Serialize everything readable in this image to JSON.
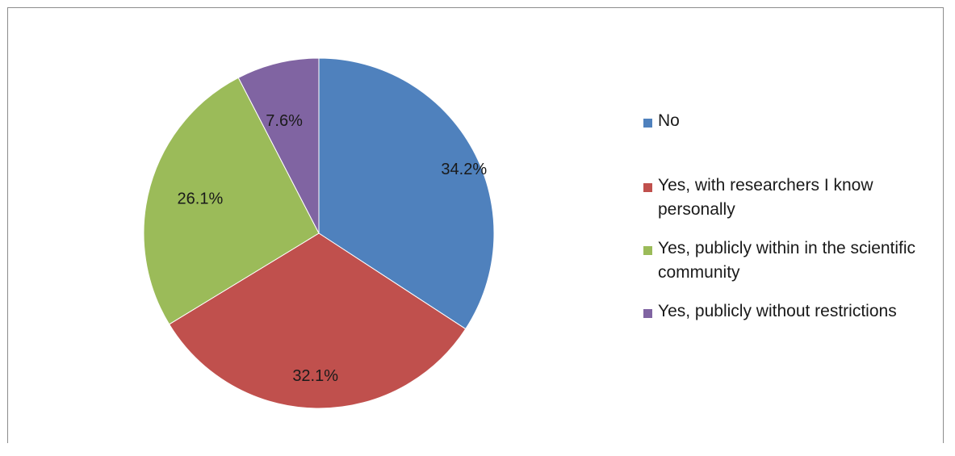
{
  "chart_data": {
    "type": "pie",
    "title": "",
    "slices": [
      {
        "label": "No",
        "value": 34.2,
        "value_label": "34.2%",
        "color": "#4f81bd"
      },
      {
        "label": "Yes, with researchers I know personally",
        "value": 32.1,
        "value_label": "32.1%",
        "color": "#c0504d"
      },
      {
        "label": "Yes, publicly within in the scientific community",
        "value": 26.1,
        "value_label": "26.1%",
        "color": "#9bbb59"
      },
      {
        "label": "Yes, publicly without restrictions",
        "value": 7.6,
        "value_label": "7.6%",
        "color": "#8064a2"
      }
    ],
    "start": "12 o'clock",
    "direction": "clockwise",
    "legend_position": "right"
  },
  "legend": {
    "items": [
      {
        "text": "No",
        "color": "#4f81bd"
      },
      {
        "text": "Yes, with researchers I know personally",
        "color": "#c0504d"
      },
      {
        "text": "Yes, publicly within in the scientific community",
        "color": "#9bbb59"
      },
      {
        "text": "Yes, publicly without restrictions",
        "color": "#8064a2"
      }
    ]
  }
}
